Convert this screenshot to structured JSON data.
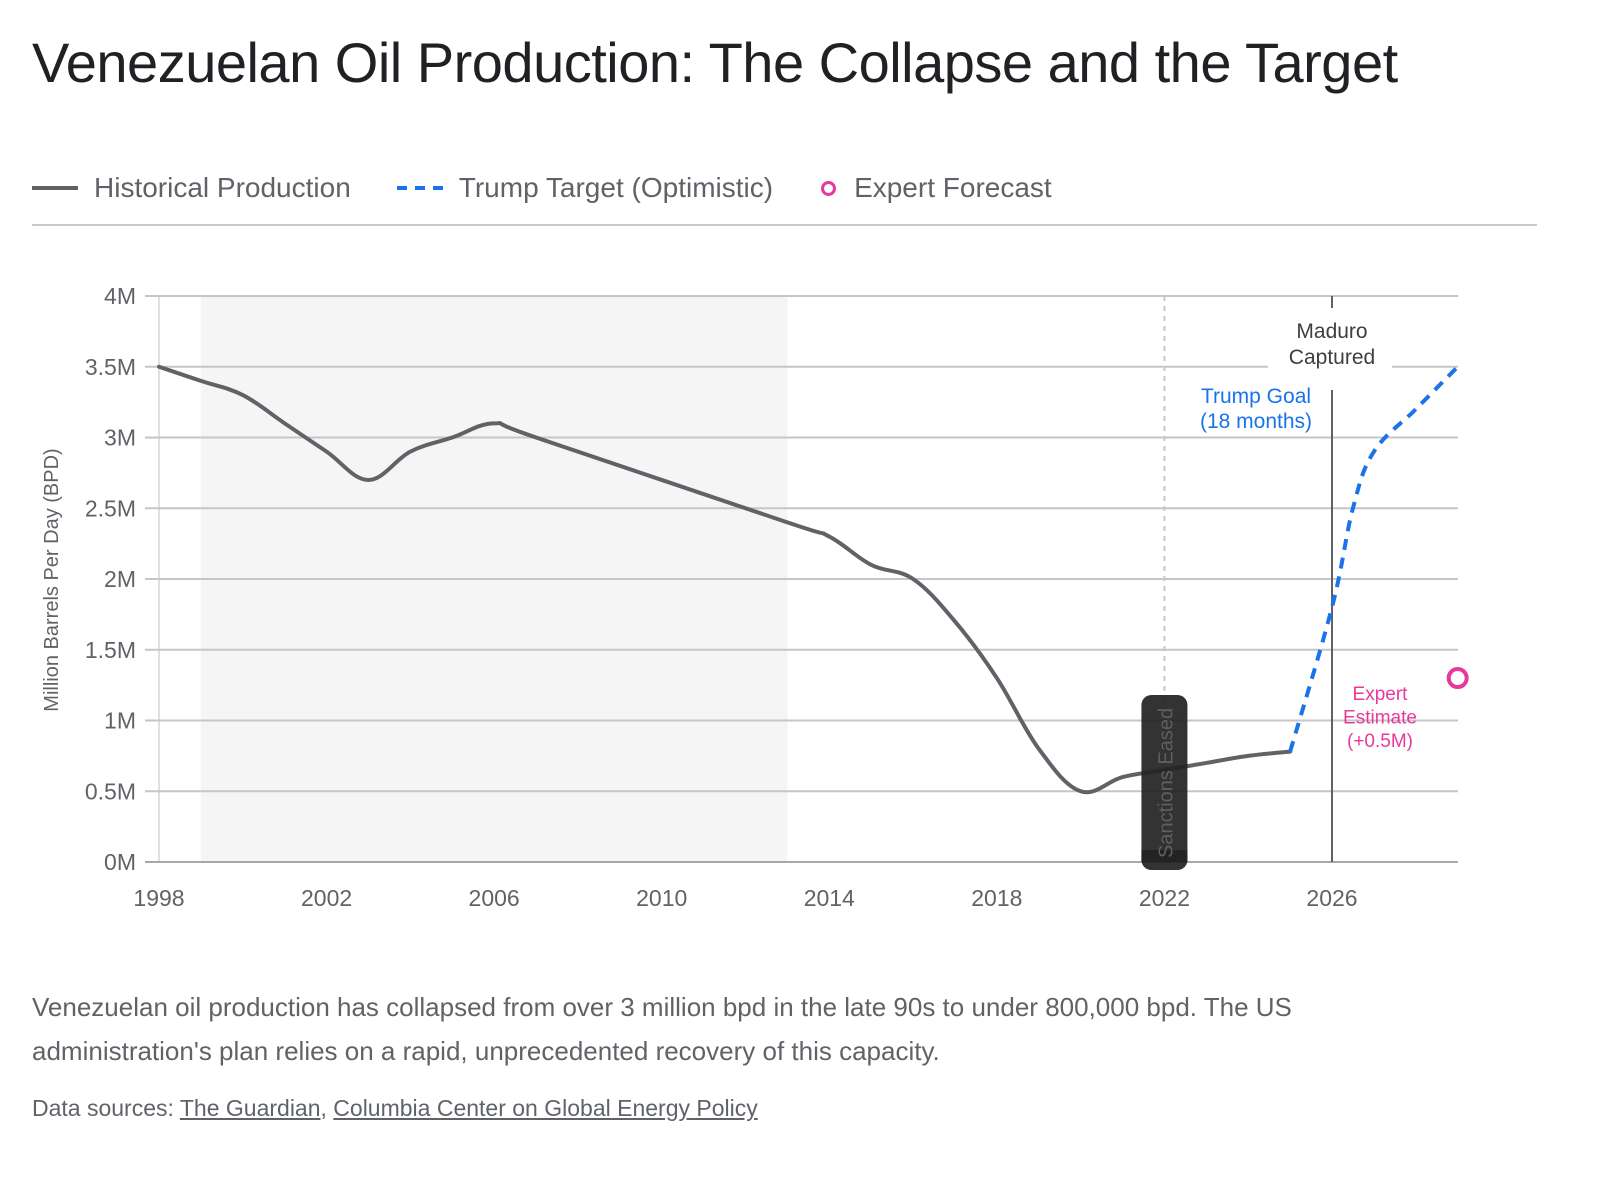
{
  "page": {
    "title": "Venezuelan Oil Production: The Collapse and the Target",
    "description": "Venezuelan oil production has collapsed from over 3 million bpd in the late 90s to under 800,000 bpd. The US administration's plan relies on a rapid, unprecedented recovery of this capacity.",
    "sources_label": "Data sources:",
    "sources": [
      {
        "label": "The Guardian"
      },
      {
        "label": "Columbia Center on Global Energy Policy"
      }
    ],
    "source_separator": ", "
  },
  "legend": [
    {
      "label": "Historical Production",
      "style": "solid",
      "color": "#5f6368"
    },
    {
      "label": "Trump Target (Optimistic)",
      "style": "dashed",
      "color": "#1a73e8"
    },
    {
      "label": "Expert Forecast",
      "style": "ring",
      "color": "#e8399b"
    }
  ],
  "chart_data": {
    "type": "line",
    "title": "Venezuelan Oil Production: The Collapse and the Target",
    "xlabel": "",
    "ylabel": "Million Barrels Per Day (BPD)",
    "xlim": [
      1998,
      2029.5
    ],
    "ylim": [
      0,
      4
    ],
    "x_ticks": [
      1998,
      2002,
      2006,
      2010,
      2014,
      2018,
      2022,
      2026
    ],
    "y_ticks": [
      0,
      0.5,
      1,
      1.5,
      2,
      2.5,
      3,
      3.5,
      4
    ],
    "y_tick_labels": [
      "0M",
      "0.5M",
      "1M",
      "1.5M",
      "2M",
      "2.5M",
      "3M",
      "3.5M",
      "4M"
    ],
    "grid": "horizontal",
    "legend_position": "top-left",
    "series": [
      {
        "name": "Historical Production",
        "color": "#5f6368",
        "style": "solid",
        "x": [
          1998,
          1999,
          2000,
          2001,
          2002,
          2003,
          2004,
          2005,
          2006,
          2007,
          2013,
          2014,
          2015,
          2016,
          2017,
          2018,
          2019,
          2020,
          2021,
          2022,
          2023,
          2024,
          2025
        ],
        "values": [
          3.5,
          3.4,
          3.3,
          3.1,
          2.9,
          2.7,
          2.9,
          3.0,
          3.1,
          3.0,
          2.4,
          2.3,
          2.1,
          2.0,
          1.7,
          1.3,
          0.8,
          0.5,
          0.6,
          0.65,
          0.7,
          0.75,
          0.78
        ]
      },
      {
        "name": "Trump Target (Optimistic)",
        "color": "#1a73e8",
        "style": "dashed",
        "x": [
          2025,
          2026,
          2026.5,
          2027,
          2028,
          2029
        ],
        "values": [
          0.78,
          1.8,
          2.5,
          2.9,
          3.2,
          3.5
        ]
      },
      {
        "name": "Expert Forecast",
        "color": "#e8399b",
        "style": "point",
        "x": [
          2029
        ],
        "values": [
          1.3
        ]
      }
    ],
    "shaded_regions": [
      {
        "from": 1999,
        "to": 2013,
        "color": "#f5f5f5"
      }
    ],
    "annotations": [
      {
        "id": "sanctions",
        "text": "Sanctions Eased",
        "x": 2022,
        "type": "dotted-vline-badge"
      },
      {
        "id": "maduro",
        "lines": [
          "Maduro",
          "Captured"
        ],
        "x": 2026,
        "type": "vline",
        "color": "#3c4043"
      },
      {
        "id": "trump-goal",
        "lines": [
          "Trump Goal",
          "(18 months)"
        ],
        "color": "#1a73e8"
      },
      {
        "id": "expert-estimate",
        "lines": [
          "Expert",
          "Estimate",
          "(+0.5M)"
        ],
        "color": "#e8399b"
      }
    ]
  }
}
